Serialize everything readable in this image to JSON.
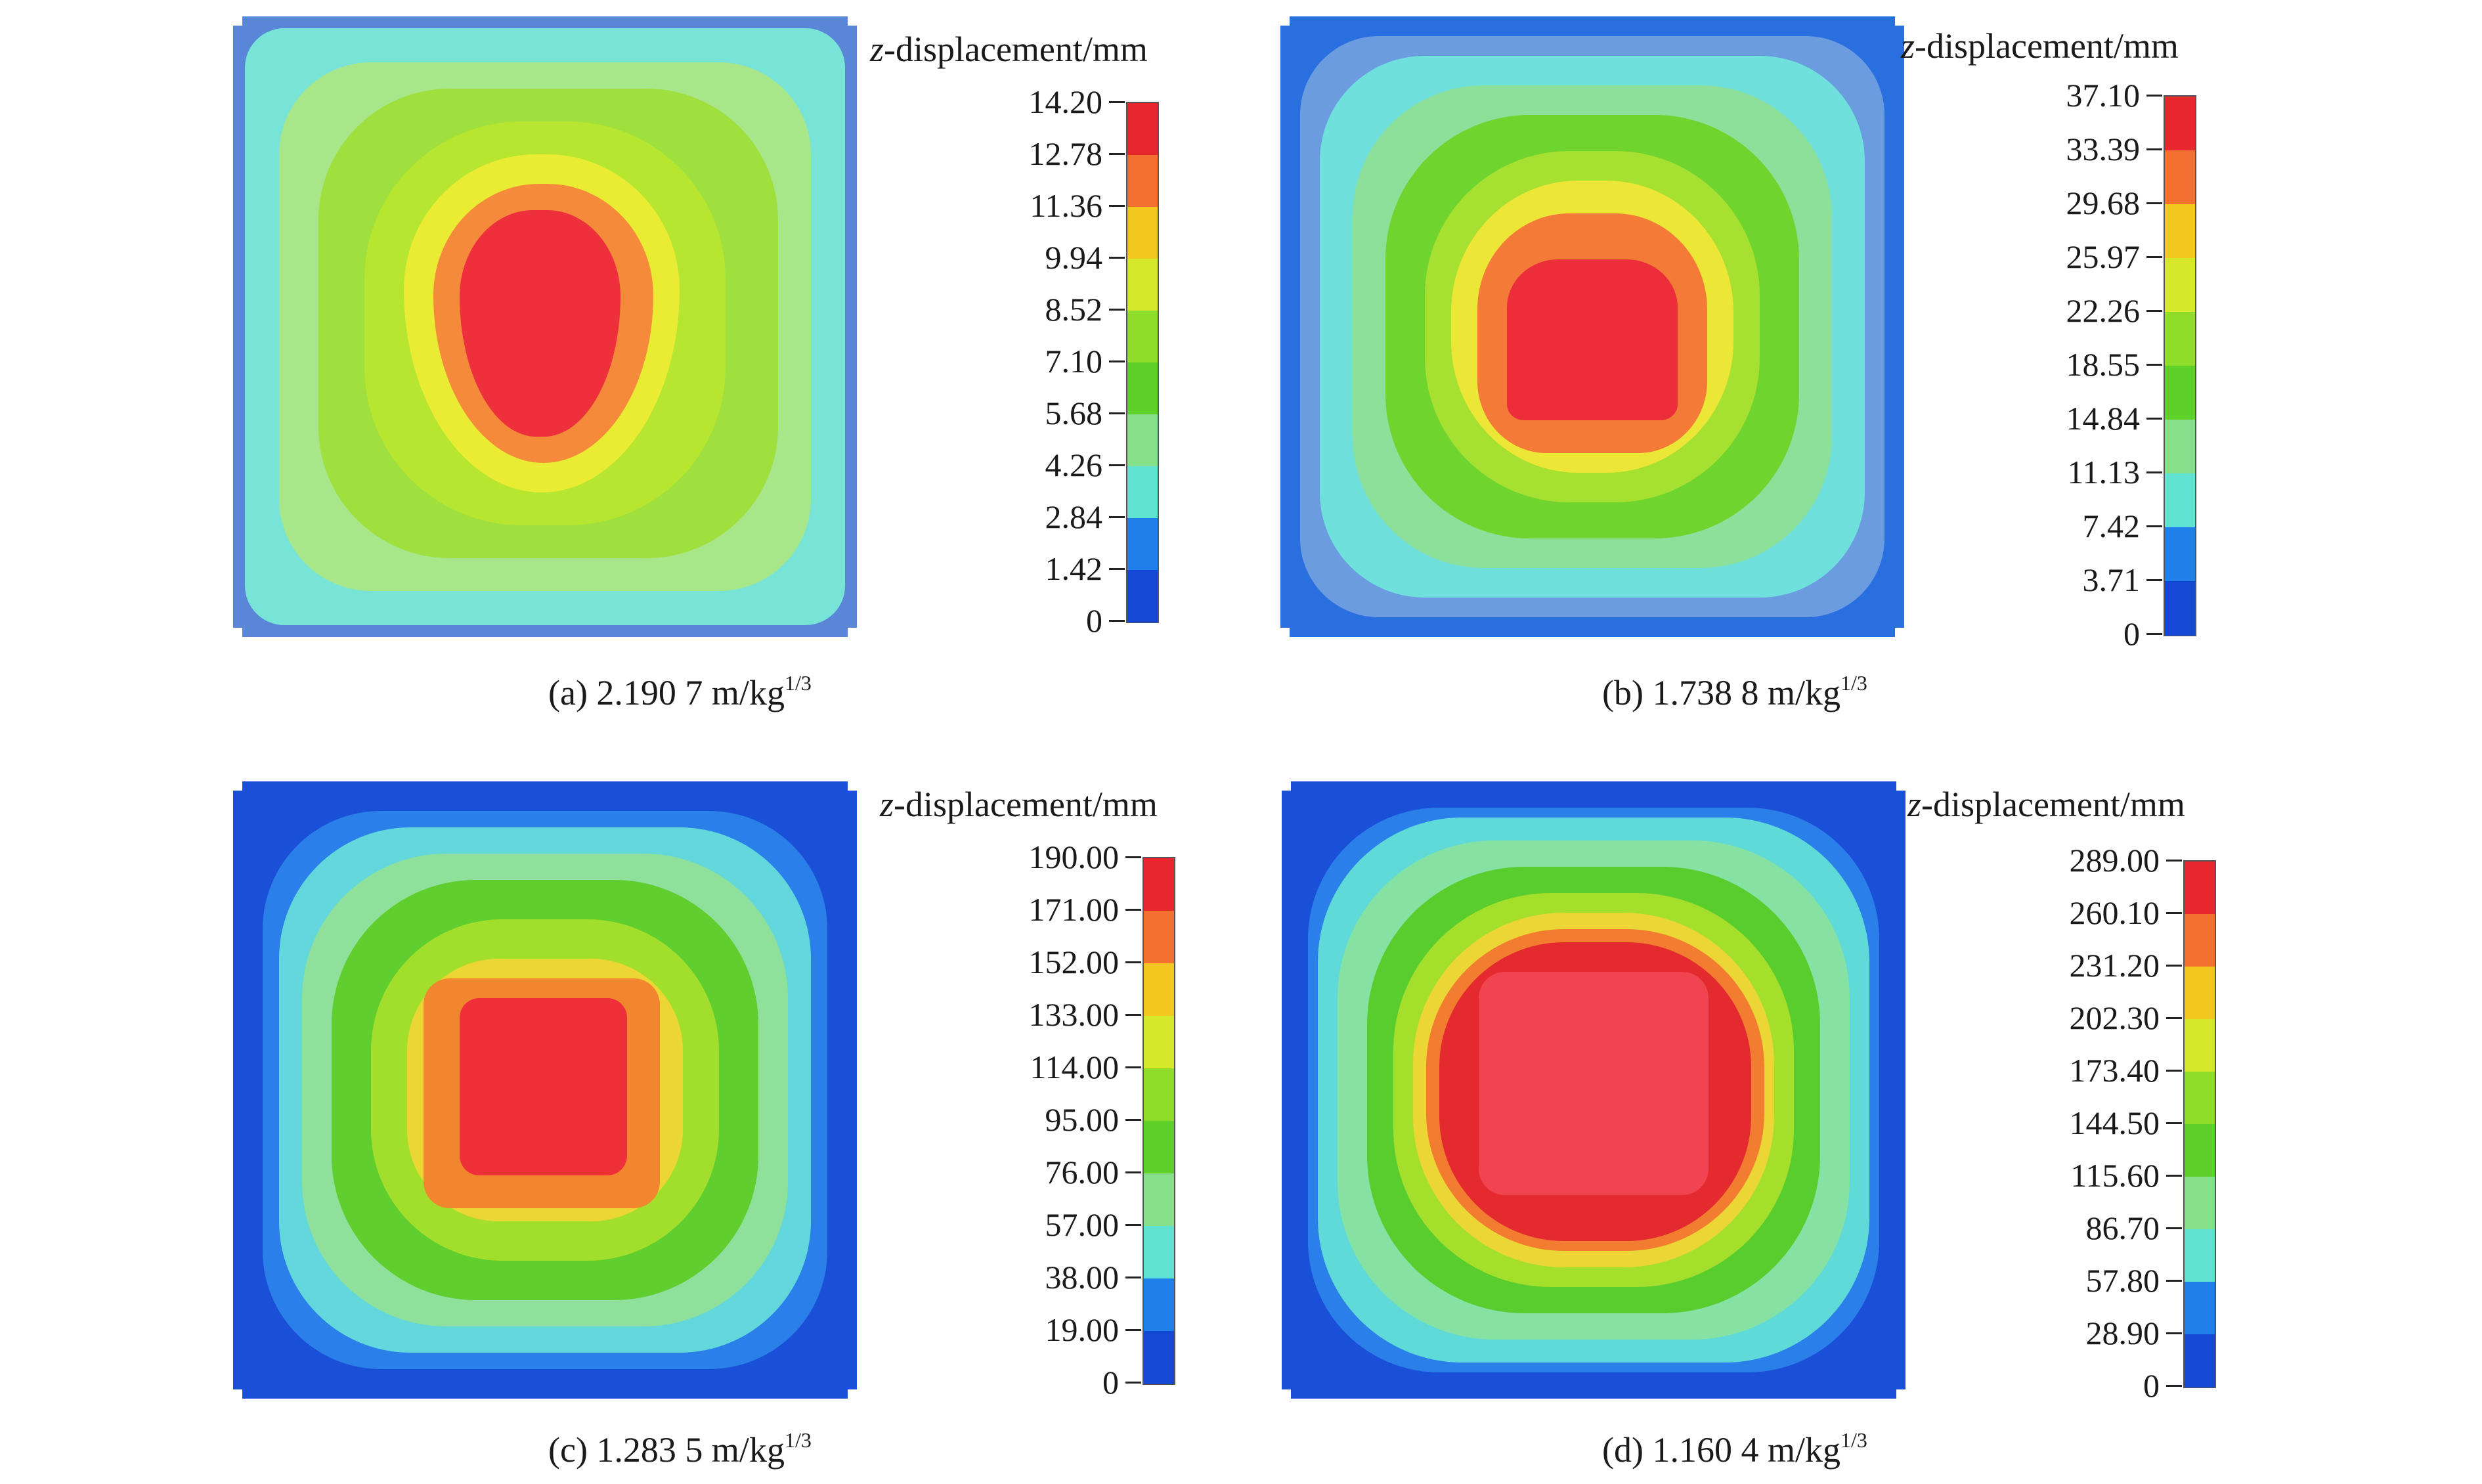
{
  "colors": {
    "scale": [
      "#1648d6",
      "#1f7fe8",
      "#5fe3d0",
      "#86e08a",
      "#5fcf2a",
      "#8fdd2a",
      "#d6e82a",
      "#f2c81e",
      "#f47030",
      "#e8262e"
    ],
    "plate_edge": "#5a86d8"
  },
  "panels": [
    {
      "id": "a",
      "title_var": "z",
      "title_rest": "-displacement/mm",
      "caption_main": "(a) 2.190 7 m/kg",
      "caption_sup": "1/3",
      "ticks": [
        "14.20",
        "12.78",
        "11.36",
        "9.94",
        "8.52",
        "7.10",
        "5.68",
        "4.26",
        "2.84",
        "1.42",
        "0"
      ],
      "bg": "#5cc6e6"
    },
    {
      "id": "b",
      "title_var": "z",
      "title_rest": "-displacement/mm",
      "caption_main": "(b) 1.738 8 m/kg",
      "caption_sup": "1/3",
      "ticks": [
        "37.10",
        "33.39",
        "29.68",
        "25.97",
        "22.26",
        "18.55",
        "14.84",
        "11.13",
        "7.42",
        "3.71",
        "0"
      ],
      "bg": "#2a6fe0"
    },
    {
      "id": "c",
      "title_var": "z",
      "title_rest": "-displacement/mm",
      "caption_main": "(c) 1.283 5 m/kg",
      "caption_sup": "1/3",
      "ticks": [
        "190.00",
        "171.00",
        "152.00",
        "133.00",
        "114.00",
        "95.00",
        "76.00",
        "57.00",
        "38.00",
        "19.00",
        "0"
      ],
      "bg": "#1a4fd8"
    },
    {
      "id": "d",
      "title_var": "z",
      "title_rest": "-displacement/mm",
      "caption_main": "(d) 1.160 4 m/kg",
      "caption_sup": "1/3",
      "ticks": [
        "289.00",
        "260.10",
        "231.20",
        "202.30",
        "173.40",
        "144.50",
        "115.60",
        "86.70",
        "57.80",
        "28.90",
        "0"
      ],
      "bg": "#1a4fd8"
    }
  ]
}
